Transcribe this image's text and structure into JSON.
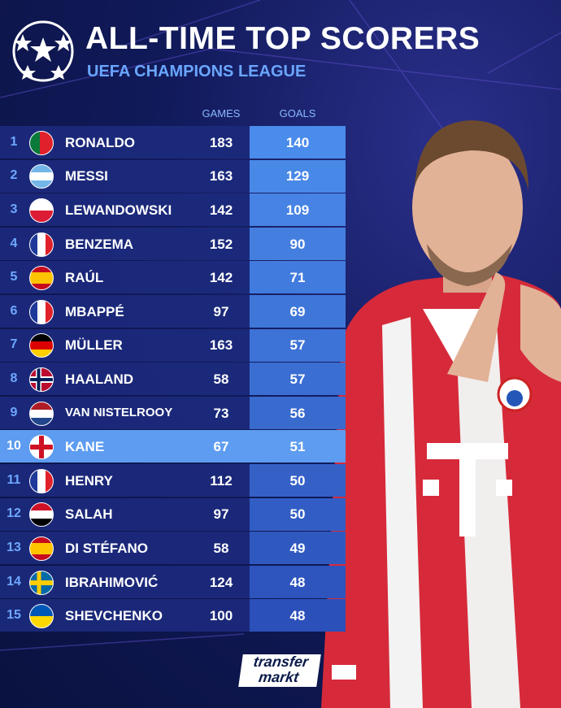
{
  "header": {
    "title": "ALL-TIME TOP SCORERS",
    "subtitle": "UEFA CHAMPIONS LEAGUE"
  },
  "table": {
    "columns": [
      "GAMES",
      "GOALS"
    ],
    "rows": [
      {
        "rank": 1,
        "name": "RONALDO",
        "games": 183,
        "goals": 140
      },
      {
        "rank": 2,
        "name": "MESSI",
        "games": 163,
        "goals": 129
      },
      {
        "rank": 3,
        "name": "LEWANDOWSKI",
        "games": 142,
        "goals": 109
      },
      {
        "rank": 4,
        "name": "BENZEMA",
        "games": 152,
        "goals": 90
      },
      {
        "rank": 5,
        "name": "RAÚL",
        "games": 142,
        "goals": 71
      },
      {
        "rank": 6,
        "name": "MBAPPÉ",
        "games": 97,
        "goals": 69
      },
      {
        "rank": 7,
        "name": "MÜLLER",
        "games": 163,
        "goals": 57
      },
      {
        "rank": 8,
        "name": "HAALAND",
        "games": 58,
        "goals": 57
      },
      {
        "rank": 9,
        "name": "VAN NISTELROOY",
        "games": 73,
        "goals": 56
      },
      {
        "rank": 10,
        "name": "KANE",
        "games": 67,
        "goals": 51
      },
      {
        "rank": 11,
        "name": "HENRY",
        "games": 112,
        "goals": 50
      },
      {
        "rank": 12,
        "name": "SALAH",
        "games": 97,
        "goals": 50
      },
      {
        "rank": 13,
        "name": "DI STÉFANO",
        "games": 58,
        "goals": 49
      },
      {
        "rank": 14,
        "name": "IBRAHIMOVIĆ",
        "games": 124,
        "goals": 48
      },
      {
        "rank": 15,
        "name": "SHEVCHENKO",
        "games": 100,
        "goals": 48
      }
    ]
  },
  "logo": {
    "line1": "transfer",
    "line2": "markt"
  }
}
